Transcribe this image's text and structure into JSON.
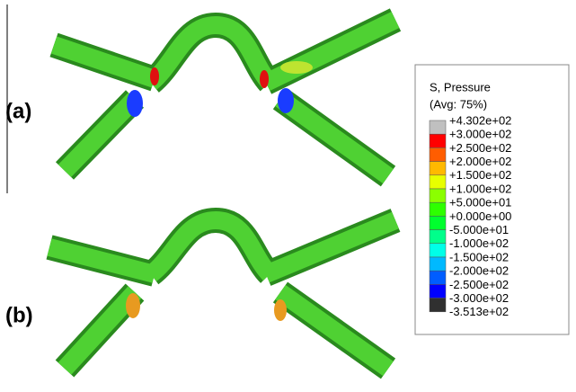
{
  "panels": [
    {
      "label": "(a)"
    },
    {
      "label": "(b)"
    }
  ],
  "legend": {
    "title": "S, Pressure",
    "subtitle": "(Avg: 75%)",
    "levels": [
      "+4.302e+02",
      "+3.000e+02",
      "+2.500e+02",
      "+2.000e+02",
      "+1.500e+02",
      "+1.000e+02",
      "+5.000e+01",
      "+0.000e+00",
      "-5.000e+01",
      "-1.000e+02",
      "-1.500e+02",
      "-2.000e+02",
      "-2.500e+02",
      "-3.000e+02",
      "-3.513e+02"
    ],
    "colors": [
      "#c0c0c0",
      "#ff0000",
      "#ff5d00",
      "#ffb900",
      "#e8ff00",
      "#8bff00",
      "#2eff00",
      "#00ff2e",
      "#00ff8b",
      "#00ffe8",
      "#00b9ff",
      "#005dff",
      "#0000ff",
      "#303030"
    ]
  }
}
